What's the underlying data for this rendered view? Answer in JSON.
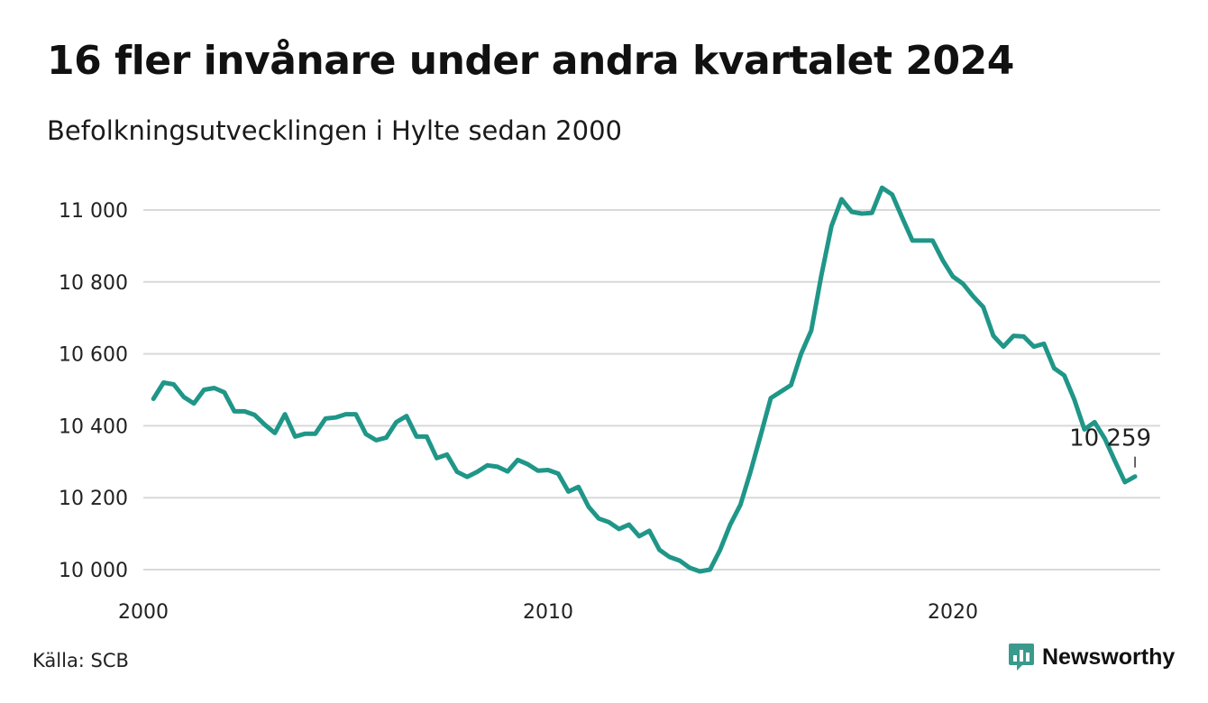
{
  "title": "16 fler invånare under andra kvartalet 2024",
  "subtitle": "Befolkningsutvecklingen i Hylte sedan 2000",
  "source": "Källa: SCB",
  "brand": {
    "name": "Newsworthy",
    "color": "#3a9a8c",
    "icon": "bar-chart-speech-bubble-icon"
  },
  "colors": {
    "line": "#1f9688",
    "grid": "#d9d9d9"
  },
  "chart_data": {
    "type": "line",
    "title": "16 fler invånare under andra kvartalet 2024",
    "subtitle": "Befolkningsutvecklingen i Hylte sedan 2000",
    "grid": true,
    "xlim": [
      2000,
      2024.5
    ],
    "ylim": [
      10000,
      11000
    ],
    "x_ticks": [
      2000,
      2010,
      2020
    ],
    "x_tick_labels": [
      "2000",
      "2010",
      "2020"
    ],
    "y_ticks": [
      10000,
      10200,
      10400,
      10600,
      10800,
      11000
    ],
    "y_tick_labels": [
      "10 000",
      "10 200",
      "10 400",
      "10 600",
      "10 800",
      "11 000"
    ],
    "annotation": {
      "x": 2024.5,
      "y": 10259,
      "text": "10 259"
    },
    "series": [
      {
        "x": [
          2000.25,
          2000.5,
          2000.75,
          2001,
          2001.25,
          2001.5,
          2001.75,
          2002,
          2002.25,
          2002.5,
          2002.75,
          2003,
          2003.25,
          2003.5,
          2003.75,
          2004,
          2004.25,
          2004.5,
          2004.75,
          2005,
          2005.25,
          2005.5,
          2005.75,
          2006,
          2006.25,
          2006.5,
          2006.75,
          2007,
          2007.25,
          2007.5,
          2007.75,
          2008,
          2008.25,
          2008.5,
          2008.75,
          2009,
          2009.25,
          2009.5,
          2009.75,
          2010,
          2010.25,
          2010.5,
          2010.75,
          2011,
          2011.25,
          2011.5,
          2011.75,
          2012,
          2012.25,
          2012.5,
          2012.75,
          2013,
          2013.25,
          2013.5,
          2013.75,
          2014,
          2014.25,
          2014.5,
          2014.75,
          2015,
          2015.25,
          2015.5,
          2015.75,
          2016,
          2016.25,
          2016.5,
          2016.75,
          2017,
          2017.25,
          2017.5,
          2017.75,
          2018,
          2018.25,
          2018.5,
          2018.75,
          2019,
          2019.25,
          2019.5,
          2019.75,
          2020,
          2020.25,
          2020.5,
          2020.75,
          2021,
          2021.25,
          2021.5,
          2021.75,
          2022,
          2022.25,
          2022.5,
          2022.75,
          2023,
          2023.25,
          2023.5,
          2023.75,
          2024,
          2024.25,
          2024.5
        ],
        "y": [
          10475,
          10520,
          10515,
          10480,
          10462,
          10500,
          10505,
          10493,
          10440,
          10440,
          10430,
          10403,
          10380,
          10432,
          10370,
          10378,
          10378,
          10420,
          10423,
          10432,
          10432,
          10377,
          10360,
          10367,
          10410,
          10427,
          10370,
          10370,
          10310,
          10320,
          10272,
          10258,
          10272,
          10290,
          10286,
          10273,
          10305,
          10293,
          10275,
          10277,
          10267,
          10217,
          10230,
          10175,
          10142,
          10132,
          10113,
          10125,
          10093,
          10108,
          10055,
          10035,
          10025,
          10005,
          9995,
          10000,
          10055,
          10125,
          10180,
          10272,
          10373,
          10477,
          10495,
          10513,
          10600,
          10665,
          10818,
          10955,
          11030,
          10995,
          10990,
          10992,
          11062,
          11043,
          10978,
          10915,
          10915,
          10915,
          10860,
          10815,
          10795,
          10760,
          10730,
          10650,
          10620,
          10650,
          10648,
          10620,
          10628,
          10560,
          10540,
          10473,
          10390,
          10410,
          10365,
          10303,
          10243,
          10259
        ]
      }
    ]
  }
}
